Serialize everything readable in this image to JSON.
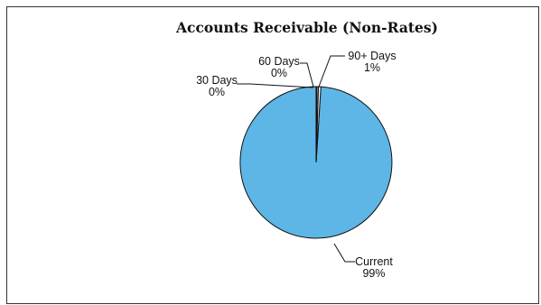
{
  "chart_data": {
    "type": "pie",
    "title": "Accounts Receivable   (Non-Rates)",
    "slices": [
      {
        "label": "Current",
        "percent_label": "99%",
        "value": 99.0,
        "color": "#5db6e6"
      },
      {
        "label": "30 Days",
        "percent_label": "0%",
        "value": 0.2,
        "color": "#ffffff"
      },
      {
        "label": "60 Days",
        "percent_label": "0%",
        "value": 0.3,
        "color": "#ffffff"
      },
      {
        "label": "90+ Days",
        "percent_label": "1%",
        "value": 0.5,
        "color": "#ffffff"
      }
    ],
    "legend": "none",
    "data_labels": "outside with leader lines"
  }
}
